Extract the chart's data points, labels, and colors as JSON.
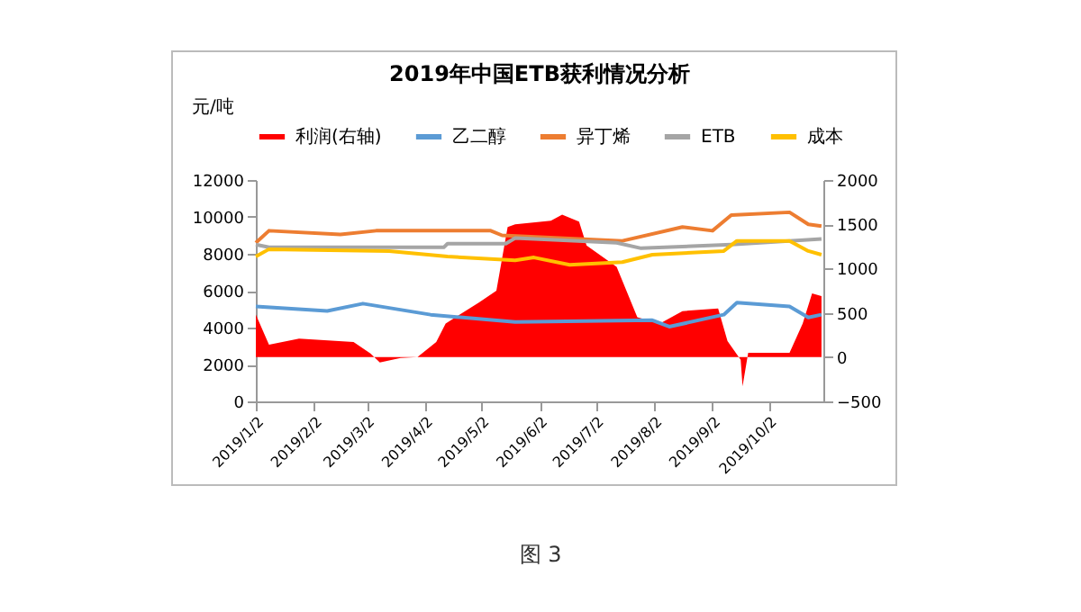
{
  "chart_data": {
    "type": "line",
    "title": "2019年中国ETB获利情况分析",
    "ylabel": "元/吨",
    "legend": "top",
    "annotations": [
      "图 3"
    ],
    "xlim": [
      "2019-01-02",
      "2019-10-31"
    ],
    "xticks": [
      {
        "value": "2019-01-02",
        "label": "2019/1/2"
      },
      {
        "value": "2019-02-02",
        "label": "2019/2/2"
      },
      {
        "value": "2019-03-02",
        "label": "2019/3/2"
      },
      {
        "value": "2019-04-02",
        "label": "2019/4/2"
      },
      {
        "value": "2019-05-02",
        "label": "2019/5/2"
      },
      {
        "value": "2019-06-02",
        "label": "2019/6/2"
      },
      {
        "value": "2019-07-02",
        "label": "2019/7/2"
      },
      {
        "value": "2019-08-02",
        "label": "2019/8/2"
      },
      {
        "value": "2019-09-02",
        "label": "2019/9/2"
      },
      {
        "value": "2019-10-02",
        "label": "2019/10/2"
      }
    ],
    "ylim": [
      0,
      12000
    ],
    "yticks": [
      0,
      2000,
      4000,
      6000,
      8000,
      10000,
      12000
    ],
    "y2lim": [
      -500,
      2000
    ],
    "y2ticks": [
      -500,
      0,
      500,
      1000,
      1500,
      2000
    ],
    "series": [
      {
        "name": "利润(右轴)",
        "type": "area",
        "axis": "y2",
        "color": "#ff0000",
        "x": [
          "2019-01-02",
          "2019-01-09",
          "2019-01-25",
          "2019-02-23",
          "2019-03-04",
          "2019-03-09",
          "2019-03-20",
          "2019-03-29",
          "2019-04-08",
          "2019-04-13",
          "2019-05-01",
          "2019-05-10",
          "2019-05-16",
          "2019-05-20",
          "2019-06-08",
          "2019-06-14",
          "2019-06-23",
          "2019-06-27",
          "2019-07-13",
          "2019-07-24",
          "2019-08-05",
          "2019-08-17",
          "2019-09-05",
          "2019-09-10",
          "2019-09-17",
          "2019-09-18",
          "2019-09-21",
          "2019-10-13",
          "2019-10-20",
          "2019-10-25",
          "2019-10-30"
        ],
        "values": [
          480,
          140,
          210,
          170,
          40,
          -60,
          -10,
          0,
          170,
          380,
          620,
          750,
          1470,
          1500,
          1540,
          1610,
          1530,
          1260,
          1020,
          450,
          380,
          520,
          550,
          180,
          -30,
          -330,
          50,
          50,
          380,
          720,
          690
        ]
      },
      {
        "name": "乙二醇",
        "color": "#5b9bd5",
        "x": [
          "2019-01-02",
          "2019-02-09",
          "2019-02-28",
          "2019-04-05",
          "2019-05-20",
          "2019-08-01",
          "2019-08-10",
          "2019-09-08",
          "2019-09-15",
          "2019-10-13",
          "2019-10-23",
          "2019-10-30"
        ],
        "values": [
          5150,
          4900,
          5300,
          4700,
          4300,
          4400,
          4050,
          4700,
          5350,
          5150,
          4550,
          4700
        ]
      },
      {
        "name": "异丁烯",
        "color": "#ed7d31",
        "x": [
          "2019-01-02",
          "2019-01-09",
          "2019-02-16",
          "2019-03-07",
          "2019-05-07",
          "2019-05-13",
          "2019-07-16",
          "2019-08-17",
          "2019-09-02",
          "2019-09-12",
          "2019-10-13",
          "2019-10-23",
          "2019-10-30"
        ],
        "values": [
          8600,
          9250,
          9050,
          9250,
          9250,
          9000,
          8700,
          9450,
          9250,
          10100,
          10250,
          9600,
          9500
        ]
      },
      {
        "name": "ETB",
        "color": "#a5a5a5",
        "x": [
          "2019-01-02",
          "2019-01-09",
          "2019-04-12",
          "2019-04-14",
          "2019-05-15",
          "2019-05-20",
          "2019-07-13",
          "2019-07-26",
          "2019-09-12",
          "2019-10-30"
        ],
        "values": [
          8500,
          8350,
          8350,
          8550,
          8550,
          8850,
          8600,
          8300,
          8500,
          8800
        ]
      },
      {
        "name": "成本",
        "color": "#ffc000",
        "x": [
          "2019-01-02",
          "2019-01-09",
          "2019-03-14",
          "2019-04-14",
          "2019-05-20",
          "2019-05-30",
          "2019-06-18",
          "2019-07-16",
          "2019-08-01",
          "2019-09-08",
          "2019-09-15",
          "2019-10-13",
          "2019-10-23",
          "2019-10-30"
        ],
        "values": [
          7850,
          8250,
          8150,
          7850,
          7650,
          7800,
          7400,
          7550,
          7950,
          8150,
          8700,
          8700,
          8150,
          7950
        ]
      }
    ]
  }
}
